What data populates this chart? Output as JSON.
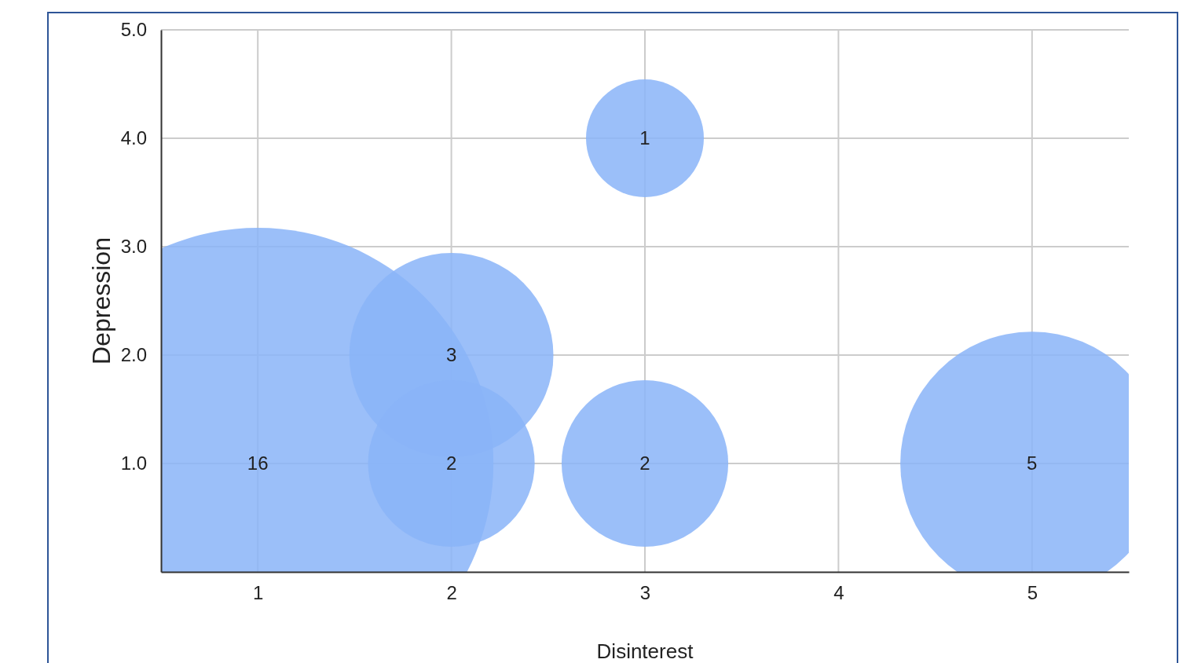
{
  "chart_data": {
    "type": "bubble",
    "xlabel": "Disinterest",
    "ylabel": "Depression",
    "x": [
      1,
      2,
      2,
      3,
      3,
      5
    ],
    "values": [
      1,
      2,
      1,
      1,
      4,
      1
    ],
    "sizes": [
      16,
      3,
      2,
      2,
      1,
      5
    ],
    "value_labels": [
      "16",
      "3",
      "2",
      "2",
      "1",
      "5"
    ],
    "color": "#8ab4f8",
    "xlim": [
      0.5,
      5.5
    ],
    "xticks": [
      1,
      2,
      3,
      4,
      5
    ],
    "ylim": [
      0,
      5
    ],
    "yticks": [
      {
        "value": 1,
        "label": "1.0"
      },
      {
        "value": 2,
        "label": "2.0"
      },
      {
        "value": 3,
        "label": "3.0"
      },
      {
        "value": 4,
        "label": "4.0"
      },
      {
        "value": 5,
        "label": "5.0"
      }
    ],
    "grid": true
  }
}
